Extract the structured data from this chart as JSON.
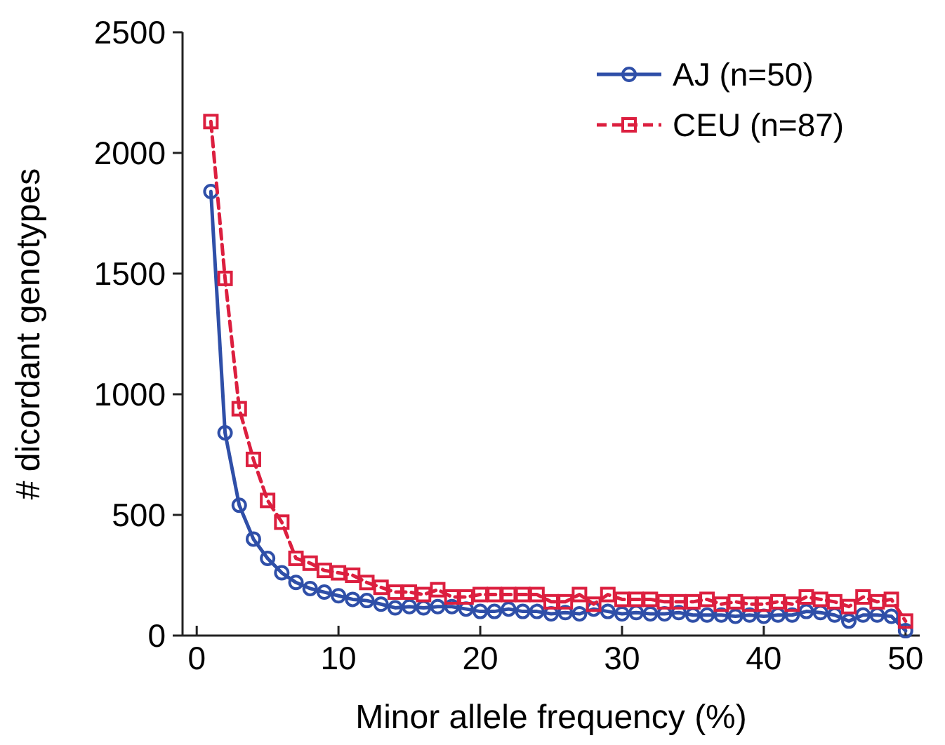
{
  "chart_data": {
    "type": "line",
    "xlabel": "Minor allele frequency (%)",
    "ylabel": "# dicordant genotypes",
    "x": [
      1,
      2,
      3,
      4,
      5,
      6,
      7,
      8,
      9,
      10,
      11,
      12,
      13,
      14,
      15,
      16,
      17,
      18,
      19,
      20,
      21,
      22,
      23,
      24,
      25,
      26,
      27,
      28,
      29,
      30,
      31,
      32,
      33,
      34,
      35,
      36,
      37,
      38,
      39,
      40,
      41,
      42,
      43,
      44,
      45,
      46,
      47,
      48,
      49,
      50
    ],
    "series": [
      {
        "name": "AJ (n=50)",
        "color": "#2f4fa8",
        "marker": "circle",
        "line_style": "solid",
        "values": [
          1840,
          840,
          540,
          400,
          320,
          260,
          220,
          195,
          180,
          165,
          150,
          145,
          130,
          115,
          120,
          115,
          120,
          120,
          110,
          100,
          100,
          110,
          100,
          100,
          90,
          95,
          90,
          110,
          100,
          90,
          95,
          90,
          90,
          95,
          85,
          85,
          85,
          80,
          85,
          80,
          85,
          85,
          100,
          95,
          85,
          60,
          85,
          85,
          80,
          20
        ]
      },
      {
        "name": "CEU (n=87)",
        "color": "#dc1f3f",
        "marker": "square",
        "line_style": "dashed",
        "values": [
          2130,
          1480,
          940,
          730,
          560,
          470,
          320,
          300,
          270,
          260,
          250,
          220,
          200,
          180,
          180,
          170,
          190,
          160,
          160,
          170,
          170,
          170,
          170,
          170,
          140,
          140,
          170,
          130,
          170,
          150,
          150,
          150,
          140,
          140,
          140,
          150,
          130,
          140,
          130,
          130,
          140,
          130,
          160,
          150,
          140,
          120,
          160,
          140,
          150,
          60
        ]
      }
    ],
    "xlim": [
      -1,
      51
    ],
    "xticks": [
      0,
      10,
      20,
      30,
      40,
      50
    ],
    "ylim": [
      0,
      2500
    ],
    "yticks": [
      0,
      500,
      1000,
      1500,
      2000,
      2500
    ],
    "legend": "top right",
    "grid": false
  }
}
